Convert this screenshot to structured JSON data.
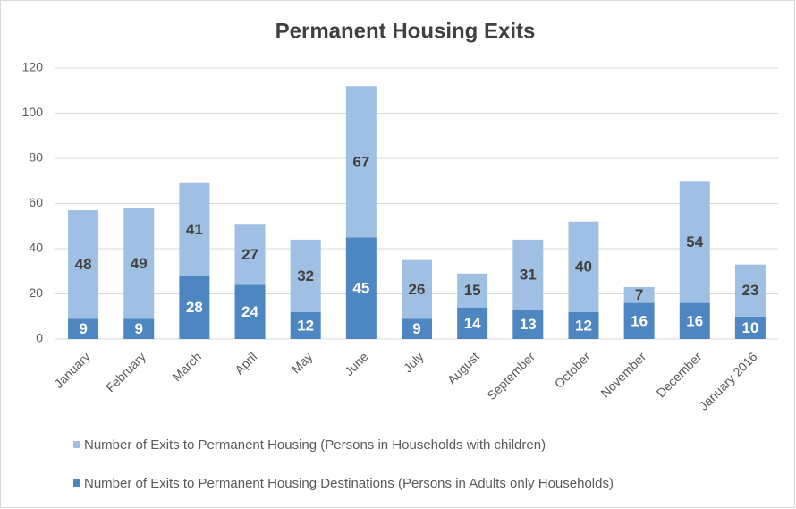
{
  "chart_data": {
    "type": "stacked_bar",
    "title": "Permanent Housing Exits",
    "categories": [
      "January",
      "February",
      "March",
      "April",
      "May",
      "June",
      "July",
      "August",
      "September",
      "October",
      "November",
      "December",
      "January 2016"
    ],
    "series": [
      {
        "name": "Number of Exits to Permanent Housing (Persons in Households with children)",
        "color": "#9fc0e3",
        "values": [
          48,
          49,
          41,
          27,
          32,
          67,
          26,
          15,
          31,
          40,
          7,
          54,
          23
        ]
      },
      {
        "name": "Number of Exits to Permanent Housing Destinations (Persons in Adults only Households)",
        "color": "#4e86c1",
        "values": [
          9,
          9,
          28,
          24,
          12,
          45,
          9,
          14,
          13,
          12,
          16,
          16,
          10
        ]
      }
    ],
    "ylim": [
      0,
      120
    ],
    "yticks": [
      0,
      20,
      40,
      60,
      80,
      100,
      120
    ],
    "grid": true,
    "legend": "bottom"
  }
}
